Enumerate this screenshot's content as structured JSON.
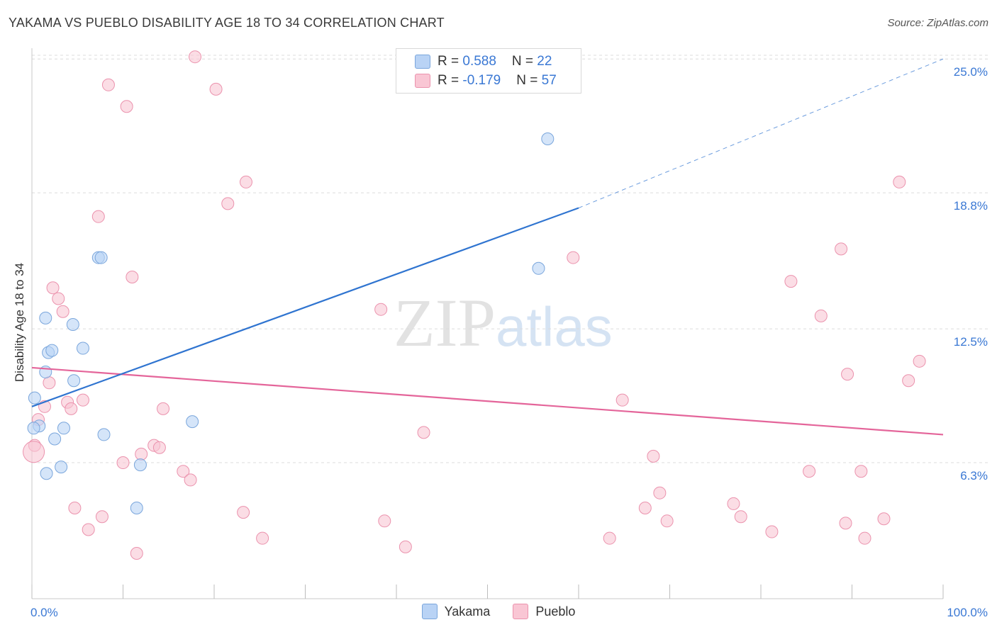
{
  "title": "YAKAMA VS PUEBLO DISABILITY AGE 18 TO 34 CORRELATION CHART",
  "source": "Source: ZipAtlas.com",
  "watermark": {
    "zip": "ZIP",
    "atlas": "atlas"
  },
  "legend_box": {
    "yakama": {
      "r_label": "R = ",
      "r_value": "0.588",
      "n_label": "N = ",
      "n_value": "22"
    },
    "pueblo": {
      "r_label": "R = ",
      "r_value": "-0.179",
      "n_label": "N = ",
      "n_value": "57"
    }
  },
  "colors": {
    "yakama_fill": "#b9d3f5",
    "yakama_stroke": "#7aa6dc",
    "yakama_line": "#2f74d0",
    "pueblo_fill": "#f9c6d4",
    "pueblo_stroke": "#eb92ad",
    "pueblo_line": "#e4659a",
    "tick_blue": "#3a78d4"
  },
  "chart_data": {
    "type": "scatter",
    "title": "YAKAMA VS PUEBLO DISABILITY AGE 18 TO 34 CORRELATION CHART",
    "xlabel": "",
    "ylabel": "Disability Age 18 to 34",
    "xlim": [
      0,
      100
    ],
    "ylim": [
      0,
      25.5
    ],
    "x_tick_labels": [
      "0.0%",
      "100.0%"
    ],
    "y_ticks": [
      {
        "value": 6.3,
        "label": "6.3%"
      },
      {
        "value": 12.5,
        "label": "12.5%"
      },
      {
        "value": 18.8,
        "label": "18.8%"
      },
      {
        "value": 25.0,
        "label": "25.0%"
      }
    ],
    "grid": true,
    "series": [
      {
        "name": "Yakama",
        "points": [
          [
            0.3,
            9.3
          ],
          [
            0.8,
            8.0
          ],
          [
            1.5,
            10.5
          ],
          [
            1.5,
            13.0
          ],
          [
            1.6,
            5.8
          ],
          [
            1.8,
            11.4
          ],
          [
            2.2,
            11.5
          ],
          [
            2.5,
            7.4
          ],
          [
            3.2,
            6.1
          ],
          [
            3.5,
            7.9
          ],
          [
            4.5,
            12.7
          ],
          [
            4.6,
            10.1
          ],
          [
            5.6,
            11.6
          ],
          [
            7.3,
            15.8
          ],
          [
            7.6,
            15.8
          ],
          [
            7.9,
            7.6
          ],
          [
            11.9,
            6.2
          ],
          [
            11.5,
            4.2
          ],
          [
            17.6,
            8.2
          ],
          [
            55.6,
            15.3
          ],
          [
            56.6,
            21.3
          ],
          [
            0.2,
            7.9
          ]
        ],
        "trend": {
          "x0": 0,
          "y0": 8.9,
          "x1": 60,
          "y1": 18.1,
          "x_dash_end": 100,
          "y_dash_end": 25.0
        }
      },
      {
        "name": "Pueblo",
        "points": [
          [
            0.3,
            7.1
          ],
          [
            0.7,
            8.3
          ],
          [
            1.4,
            8.9
          ],
          [
            1.9,
            10.0
          ],
          [
            2.3,
            14.4
          ],
          [
            2.9,
            13.9
          ],
          [
            3.4,
            13.3
          ],
          [
            3.9,
            9.1
          ],
          [
            4.3,
            8.8
          ],
          [
            4.7,
            4.2
          ],
          [
            5.6,
            9.2
          ],
          [
            6.2,
            3.2
          ],
          [
            7.3,
            17.7
          ],
          [
            7.7,
            3.8
          ],
          [
            8.4,
            23.8
          ],
          [
            10.0,
            6.3
          ],
          [
            10.4,
            22.8
          ],
          [
            11.0,
            14.9
          ],
          [
            11.5,
            2.1
          ],
          [
            12.0,
            6.7
          ],
          [
            13.4,
            7.1
          ],
          [
            14.0,
            7.0
          ],
          [
            14.4,
            8.8
          ],
          [
            16.6,
            5.9
          ],
          [
            17.4,
            5.5
          ],
          [
            17.9,
            25.1
          ],
          [
            20.2,
            23.6
          ],
          [
            21.5,
            18.3
          ],
          [
            23.2,
            4.0
          ],
          [
            23.5,
            19.3
          ],
          [
            25.3,
            2.8
          ],
          [
            38.3,
            13.4
          ],
          [
            38.7,
            3.6
          ],
          [
            41.0,
            2.4
          ],
          [
            43.0,
            7.7
          ],
          [
            59.4,
            15.8
          ],
          [
            63.4,
            2.8
          ],
          [
            64.8,
            9.2
          ],
          [
            67.3,
            4.2
          ],
          [
            68.2,
            6.6
          ],
          [
            68.9,
            4.9
          ],
          [
            69.7,
            3.6
          ],
          [
            77.0,
            4.4
          ],
          [
            77.8,
            3.8
          ],
          [
            81.2,
            3.1
          ],
          [
            83.3,
            14.7
          ],
          [
            85.3,
            5.9
          ],
          [
            86.6,
            13.1
          ],
          [
            88.8,
            16.2
          ],
          [
            89.3,
            3.5
          ],
          [
            89.5,
            10.4
          ],
          [
            91.0,
            5.9
          ],
          [
            91.4,
            2.8
          ],
          [
            93.5,
            3.7
          ],
          [
            95.2,
            19.3
          ],
          [
            96.2,
            10.1
          ],
          [
            97.4,
            11.0
          ]
        ],
        "trend": {
          "x0": 0,
          "y0": 10.7,
          "x1": 100,
          "y1": 7.6
        }
      }
    ]
  }
}
